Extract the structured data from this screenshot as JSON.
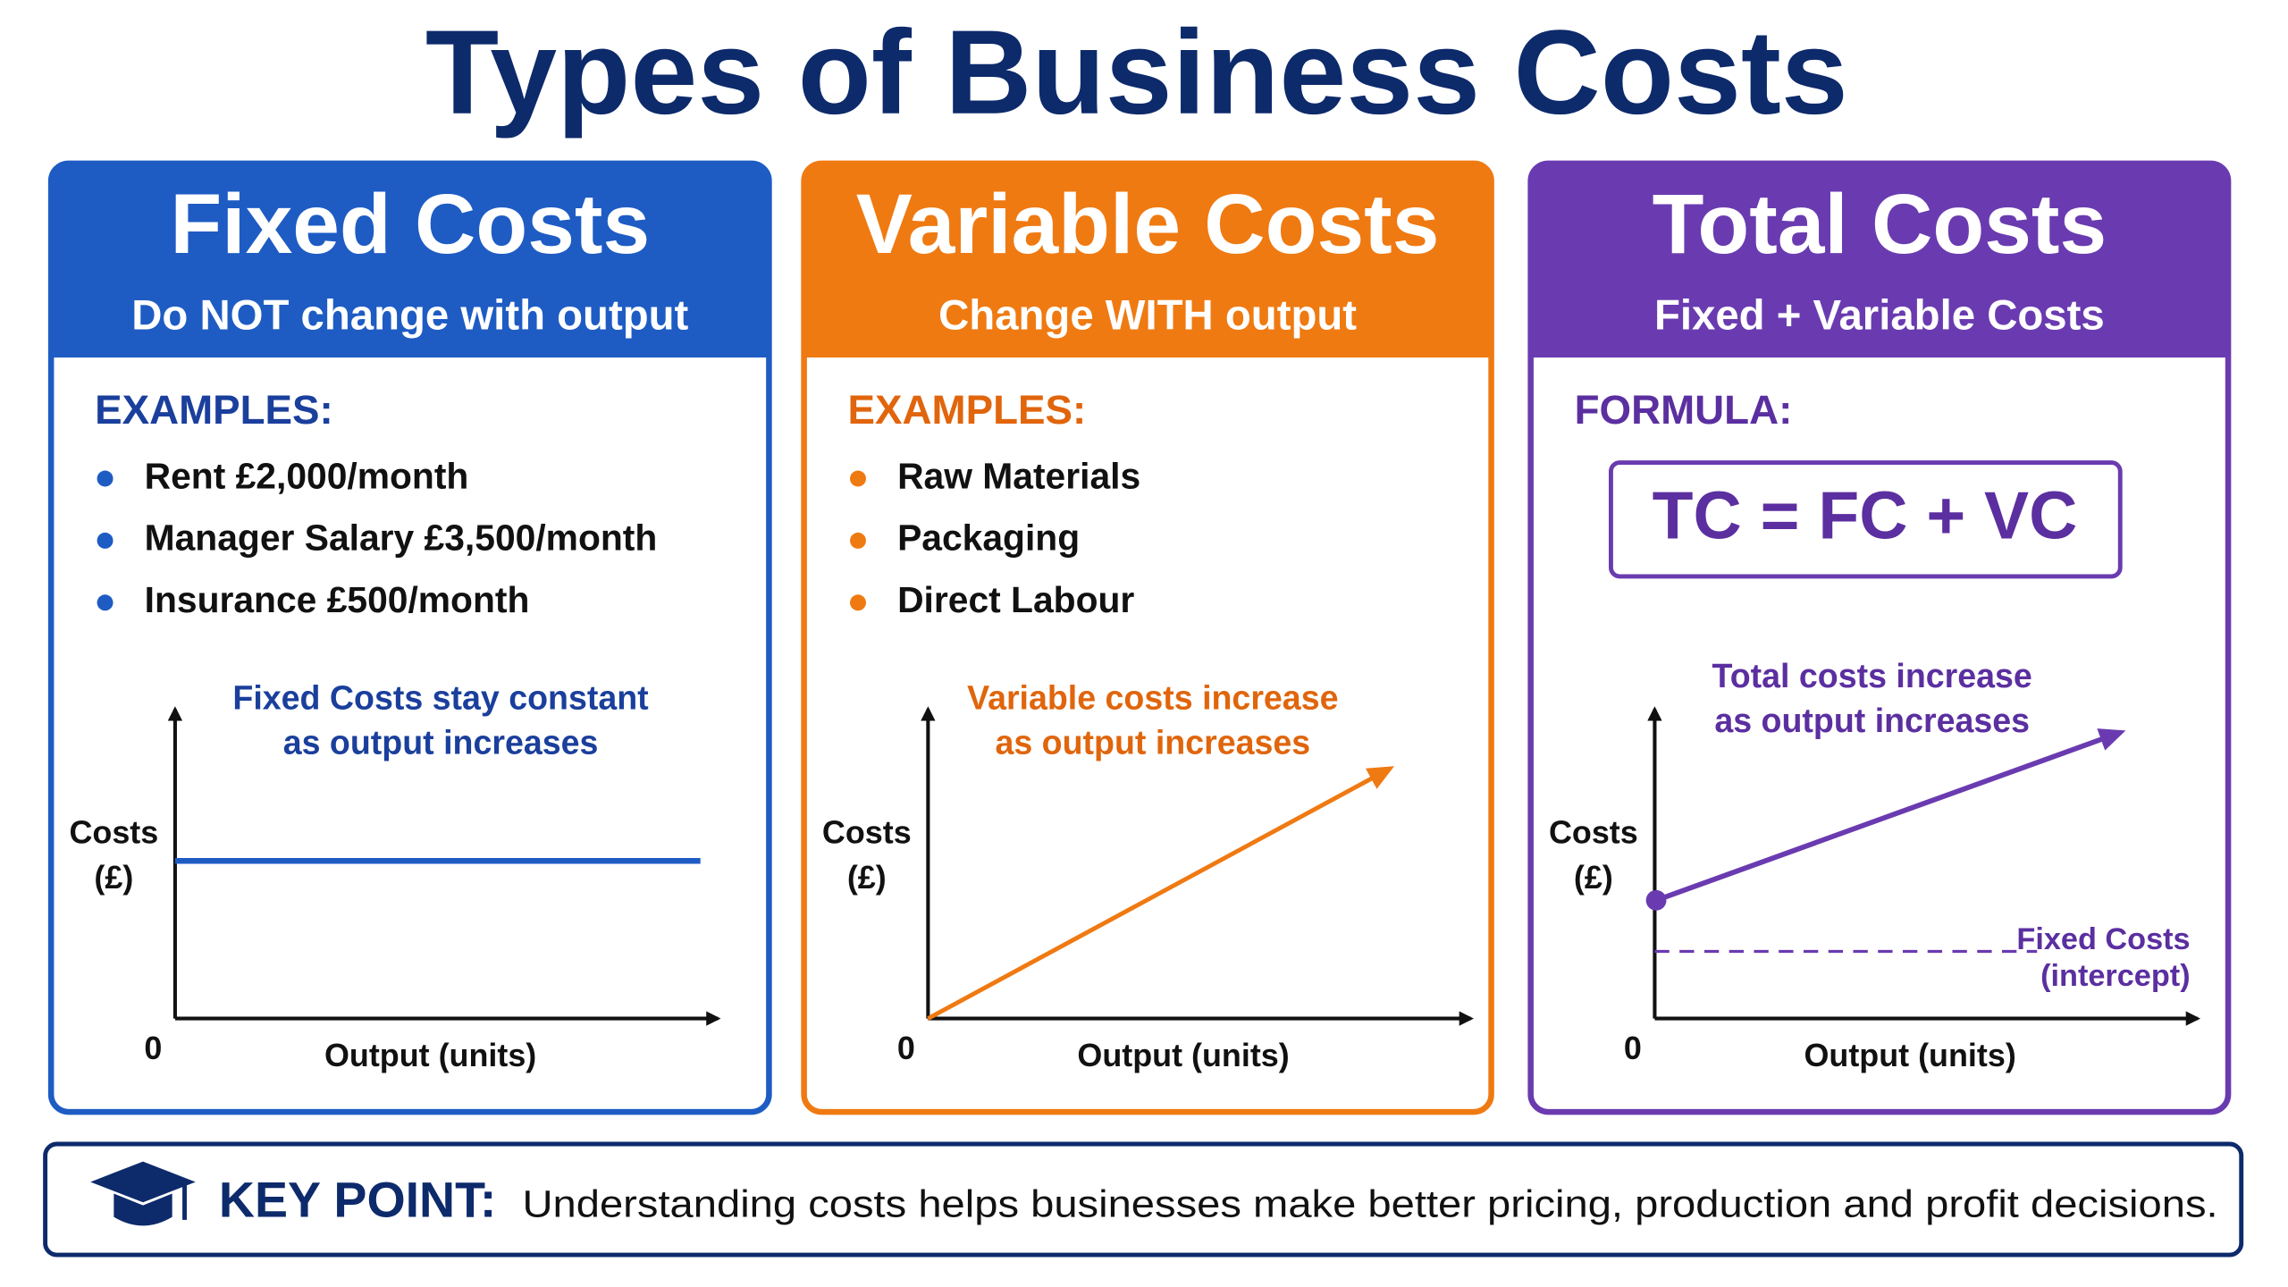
{
  "title": "Types of Business Costs",
  "panels": [
    {
      "heading": "Fixed Costs",
      "subheading": "Do NOT change with output",
      "section_label": "EXAMPLES:",
      "items": [
        "Rent £2,000/month",
        "Manager Salary £3,500/month",
        "Insurance £500/month"
      ],
      "graph": {
        "annotation": [
          "Fixed Costs stay constant",
          "as output increases"
        ],
        "y_label": [
          "Costs",
          "(£)"
        ],
        "origin": "0",
        "x_label": "Output (units)"
      }
    },
    {
      "heading": "Variable Costs",
      "subheading": "Change WITH output",
      "section_label": "EXAMPLES:",
      "items": [
        "Raw Materials",
        "Packaging",
        "Direct Labour"
      ],
      "graph": {
        "annotation": [
          "Variable costs increase",
          "as output increases"
        ],
        "y_label": [
          "Costs",
          "(£)"
        ],
        "origin": "0",
        "x_label": "Output (units)"
      }
    },
    {
      "heading": "Total Costs",
      "subheading": "Fixed + Variable Costs",
      "section_label": "FORMULA:",
      "formula": "TC = FC + VC",
      "graph": {
        "annotation": [
          "Total costs increase",
          "as output increases"
        ],
        "y_label": [
          "Costs",
          "(£)"
        ],
        "origin": "0",
        "x_label": "Output (units)",
        "intercept_label": [
          "Fixed Costs",
          "(intercept)"
        ]
      }
    }
  ],
  "key_point": {
    "label": "KEY POINT:",
    "text": "Understanding costs helps businesses make better pricing, production and profit decisions."
  }
}
